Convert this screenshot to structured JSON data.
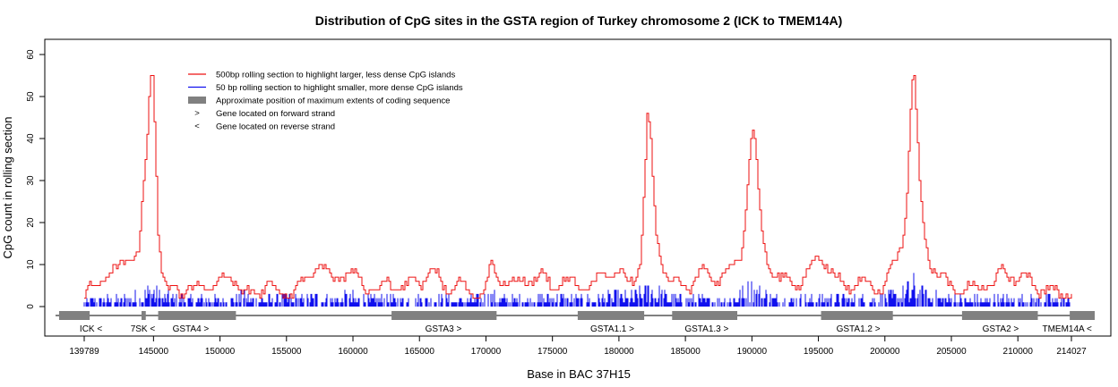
{
  "chart_data": {
    "type": "line",
    "title": "Distribution of CpG sites in the GSTA region of Turkey chromosome 2 (ICK to TMEM14A)",
    "xlabel": "Base in BAC 37H15",
    "ylabel": "CpG count in rolling section",
    "xlim": [
      139789,
      214027
    ],
    "ylim": [
      0,
      60
    ],
    "y_ticks": [
      0,
      10,
      20,
      30,
      40,
      50,
      60
    ],
    "x_ticks": [
      {
        "value": 139789,
        "label": "139789"
      },
      {
        "value": 145000,
        "label": "145000"
      },
      {
        "value": 150000,
        "label": "150000"
      },
      {
        "value": 155000,
        "label": "155000"
      },
      {
        "value": 160000,
        "label": "160000"
      },
      {
        "value": 165000,
        "label": "165000"
      },
      {
        "value": 170000,
        "label": "170000"
      },
      {
        "value": 175000,
        "label": "175000"
      },
      {
        "value": 180000,
        "label": "180000"
      },
      {
        "value": 185000,
        "label": "185000"
      },
      {
        "value": 190000,
        "label": "190000"
      },
      {
        "value": 195000,
        "label": "195000"
      },
      {
        "value": 200000,
        "label": "200000"
      },
      {
        "value": 205000,
        "label": "205000"
      },
      {
        "value": 210000,
        "label": "210000"
      },
      {
        "value": 214027,
        "label": "214027"
      }
    ],
    "grid": false,
    "legend_position": "top-left",
    "legend": [
      {
        "label": "500bp rolling section to highlight larger, less dense CpG islands",
        "symbol": "line",
        "color": "#ee1111"
      },
      {
        "label": "50 bp rolling section to highlight smaller, more dense CpG islands",
        "symbol": "line",
        "color": "#1010ee"
      },
      {
        "label": "Approximate position of maximum extents of coding sequence",
        "symbol": "box",
        "color": "#808080"
      },
      {
        "label": "Gene located on forward strand",
        "symbol": ">",
        "color": "#000000"
      },
      {
        "label": "Gene located on reverse strand",
        "symbol": "<",
        "color": "#000000"
      }
    ],
    "series": [
      {
        "name": "500bp rolling section to highlight larger, less dense CpG islands",
        "color": "#ee1111",
        "baseline": 3,
        "x": [
          139789,
          140200,
          140700,
          141300,
          141800,
          142400,
          143000,
          143400,
          143800,
          144000,
          144200,
          144500,
          144700,
          144900,
          145100,
          145300,
          145600,
          146100,
          146600,
          147100,
          147600,
          148200,
          148800,
          149500,
          150100,
          150800,
          151500,
          152200,
          152900,
          153500,
          154000,
          154700,
          155400,
          156100,
          156800,
          157400,
          157900,
          158500,
          159200,
          159900,
          160500,
          161200,
          161900,
          162500,
          163200,
          163900,
          164500,
          165200,
          166000,
          166600,
          167300,
          168000,
          168600,
          169200,
          169800,
          170400,
          170900,
          171500,
          172200,
          172900,
          173600,
          174300,
          175000,
          175700,
          176400,
          177100,
          177800,
          178500,
          179200,
          179900,
          180600,
          181200,
          181600,
          181900,
          182100,
          182300,
          182500,
          182800,
          183200,
          183800,
          184500,
          185200,
          185900,
          186600,
          187300,
          188000,
          188600,
          189100,
          189500,
          189800,
          190000,
          190200,
          190500,
          190900,
          191500,
          192200,
          192900,
          193600,
          194300,
          195000,
          195600,
          196200,
          196900,
          197600,
          198300,
          199000,
          199700,
          200300,
          200800,
          201300,
          201600,
          201900,
          202100,
          202300,
          202600,
          203000,
          203500,
          204000,
          204600,
          205300,
          206000,
          206700,
          207400,
          208100,
          208800,
          209500,
          210200,
          210900,
          211600,
          212300,
          213000,
          213600,
          214027
        ],
        "values": [
          3,
          5,
          6,
          7,
          6,
          8,
          10,
          11,
          10,
          18,
          27,
          40,
          55,
          58,
          42,
          20,
          8,
          5,
          7,
          4,
          5,
          4,
          5,
          4,
          5,
          6,
          4,
          3,
          4,
          8,
          5,
          3,
          4,
          5,
          6,
          10,
          7,
          5,
          8,
          9,
          7,
          6,
          5,
          7,
          5,
          4,
          5,
          5,
          7,
          5,
          4,
          7,
          5,
          4,
          4,
          10,
          6,
          5,
          4,
          5,
          6,
          7,
          5,
          8,
          7,
          6,
          5,
          6,
          7,
          6,
          5,
          6,
          12,
          30,
          45,
          44,
          30,
          17,
          13,
          8,
          6,
          5,
          7,
          6,
          5,
          7,
          8,
          12,
          25,
          38,
          43,
          40,
          25,
          15,
          10,
          7,
          6,
          5,
          7,
          11,
          9,
          6,
          5,
          7,
          8,
          6,
          5,
          8,
          10,
          15,
          25,
          45,
          56,
          45,
          25,
          15,
          9,
          8,
          6,
          5,
          6,
          5,
          6,
          5,
          7,
          6,
          5,
          6,
          4,
          5,
          4,
          5,
          4
        ]
      },
      {
        "name": "50 bp rolling section to highlight smaller, more dense CpG islands",
        "color": "#1010ee",
        "baseline": 0,
        "x": [
          139789,
          140500,
          141500,
          142500,
          143500,
          144200,
          144600,
          144900,
          145300,
          146000,
          147500,
          149000,
          150500,
          152000,
          153500,
          155000,
          156500,
          157400,
          158500,
          160000,
          161500,
          163000,
          164500,
          166000,
          167500,
          169000,
          170400,
          172000,
          173500,
          175000,
          176500,
          178000,
          179500,
          181000,
          182000,
          182300,
          182700,
          183500,
          185000,
          186500,
          188000,
          189300,
          190000,
          190500,
          191500,
          193000,
          194500,
          196000,
          197500,
          199000,
          200500,
          201500,
          202000,
          202400,
          203000,
          204500,
          206000,
          207500,
          209000,
          210500,
          212000,
          213500,
          214027
        ],
        "values": [
          2,
          3,
          3,
          3,
          4,
          5,
          7,
          8,
          5,
          4,
          3,
          3,
          3,
          4,
          3,
          3,
          3,
          5,
          3,
          4,
          3,
          3,
          3,
          3,
          3,
          3,
          4,
          3,
          3,
          4,
          3,
          3,
          4,
          4,
          6,
          9,
          7,
          4,
          3,
          3,
          3,
          5,
          8,
          6,
          4,
          3,
          3,
          4,
          3,
          3,
          4,
          6,
          9,
          7,
          5,
          4,
          3,
          3,
          3,
          3,
          3,
          3,
          2
        ]
      }
    ],
    "genes": [
      {
        "name": "ICK",
        "strand": "<",
        "start": 137900,
        "end": 140200,
        "label_pos": 140300,
        "label": "ICK"
      },
      {
        "name": "7SK",
        "strand": "<",
        "start": 144100,
        "end": 144420,
        "label_pos": 144200,
        "label": "7SK"
      },
      {
        "name": "GSTA4",
        "strand": ">",
        "start": 145350,
        "end": 151200,
        "label_pos": 147800,
        "label": "GSTA4"
      },
      {
        "name": "GSTA3",
        "strand": ">",
        "start": 162900,
        "end": 170800,
        "label_pos": 166800,
        "label": "GSTA3"
      },
      {
        "name": "GSTA1.1",
        "strand": ">",
        "start": 176900,
        "end": 181900,
        "label_pos": 179500,
        "label": "GSTA1.1"
      },
      {
        "name": "GSTA1.3",
        "strand": ">",
        "start": 184000,
        "end": 188900,
        "label_pos": 186600,
        "label": "GSTA1.3"
      },
      {
        "name": "GSTA1.2",
        "strand": ">",
        "start": 195200,
        "end": 200600,
        "label_pos": 198000,
        "label": "GSTA1.2"
      },
      {
        "name": "GSTA2",
        "strand": ">",
        "start": 205800,
        "end": 211500,
        "label_pos": 208700,
        "label": "GSTA2"
      },
      {
        "name": "TMEM14A",
        "strand": "<",
        "start": 213900,
        "end": 215900,
        "label_pos": 213700,
        "label": "TMEM14A"
      }
    ]
  }
}
